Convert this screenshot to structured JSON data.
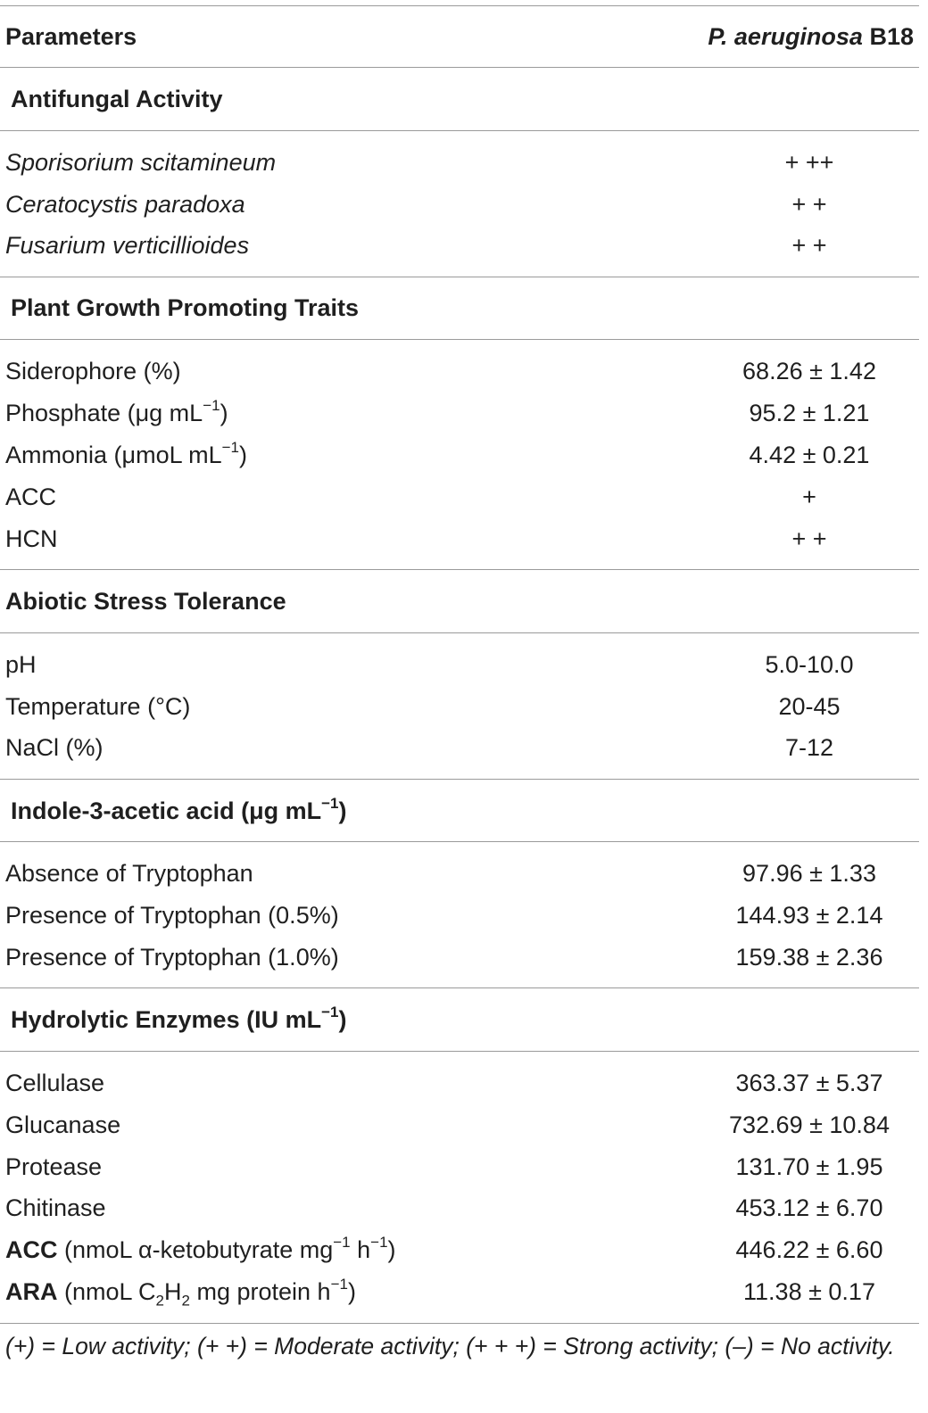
{
  "header": {
    "col1": "Parameters",
    "col2_italic": "P. aeruginosa",
    "col2_rest": " B18"
  },
  "sections": {
    "antifungal": {
      "title": "Antifungal Activity",
      "rows": [
        {
          "label": "Sporisorium scitamineum",
          "value": "+ ++"
        },
        {
          "label": "Ceratocystis paradoxa",
          "value": "+ +"
        },
        {
          "label": "Fusarium verticillioides",
          "value": "+ +"
        }
      ]
    },
    "pgp": {
      "title": "Plant Growth Promoting Traits",
      "rows": [
        {
          "label": "Siderophore (%)",
          "value": "68.26 ± 1.42"
        },
        {
          "label_pre": "Phosphate (μg mL",
          "sup": "−1",
          "label_post": ")",
          "value": "95.2 ± 1.21"
        },
        {
          "label_pre": "Ammonia (μmoL mL",
          "sup": "−1",
          "label_post": ")",
          "value": "4.42 ± 0.21"
        },
        {
          "label": "ACC",
          "value": "+"
        },
        {
          "label": "HCN",
          "value": "+ +"
        }
      ]
    },
    "abiotic": {
      "title": "Abiotic Stress Tolerance",
      "rows": [
        {
          "label": "pH",
          "value": "5.0-10.0"
        },
        {
          "label": "Temperature (°C)",
          "value": "20-45"
        },
        {
          "label": "NaCl (%)",
          "value": "7-12"
        }
      ]
    },
    "iaa": {
      "title_pre": "Indole-3-acetic acid (μg mL",
      "title_sup": "−1",
      "title_post": ")",
      "rows": [
        {
          "label": "Absence of Tryptophan",
          "value": "97.96 ± 1.33"
        },
        {
          "label": "Presence of Tryptophan (0.5%)",
          "value": "144.93 ± 2.14"
        },
        {
          "label": "Presence of Tryptophan (1.0%)",
          "value": "159.38 ± 2.36"
        }
      ]
    },
    "hydrolytic": {
      "title_pre": "Hydrolytic Enzymes (IU mL",
      "title_sup": "−1",
      "title_post": ")",
      "rows": [
        {
          "label": "Cellulase",
          "value": "363.37 ± 5.37"
        },
        {
          "label": "Glucanase",
          "value": "732.69 ± 10.84"
        },
        {
          "label": "Protease",
          "value": "131.70 ± 1.95"
        },
        {
          "label": "Chitinase",
          "value": "453.12 ± 6.70"
        },
        {
          "bold": "ACC",
          "a": " (nmoL α-ketobutyrate mg",
          "sup1": "−1",
          "b": " h",
          "sup2": "−1",
          "c": ")",
          "value": "446.22 ± 6.60"
        },
        {
          "bold": "ARA",
          "a": " (nmoL C",
          "sub1": "2",
          "b": "H",
          "sub2": "2",
          "c": " mg protein h",
          "sup1": "−1",
          "d": ")",
          "value": "11.38 ± 0.17"
        }
      ]
    }
  },
  "footnote": "(+) = Low activity; (+  +) = Moderate activity; (+  +  +) = Strong activity; (–) = No activity."
}
